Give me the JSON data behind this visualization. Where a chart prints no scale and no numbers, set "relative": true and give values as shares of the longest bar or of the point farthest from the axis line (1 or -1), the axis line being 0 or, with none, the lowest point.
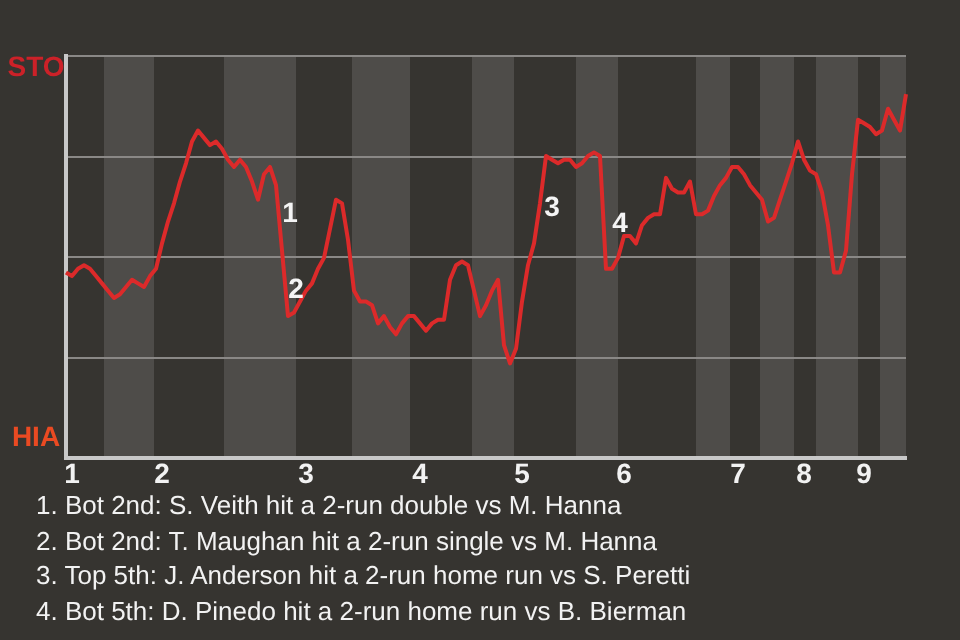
{
  "chart_data": {
    "type": "line",
    "relative": true,
    "categories": [
      null,
      "1",
      null,
      null,
      null,
      null,
      null,
      null,
      null,
      null,
      null,
      null,
      null,
      null,
      null,
      null,
      "2",
      null,
      null,
      null,
      null,
      null,
      null,
      null,
      null,
      null,
      null,
      null,
      null,
      null,
      null,
      null,
      null,
      null,
      null,
      null,
      null,
      null,
      null,
      null,
      "3",
      null,
      null,
      null,
      null,
      null,
      null,
      null,
      null,
      null,
      null,
      null,
      null,
      null,
      null,
      null,
      null,
      null,
      null,
      "4",
      null,
      null,
      null,
      null,
      null,
      null,
      null,
      null,
      null,
      null,
      null,
      null,
      null,
      null,
      null,
      null,
      "5",
      null,
      null,
      null,
      null,
      null,
      null,
      null,
      null,
      null,
      null,
      null,
      null,
      null,
      null,
      null,
      null,
      "6",
      null,
      null,
      null,
      null,
      null,
      null,
      null,
      null,
      null,
      null,
      null,
      null,
      null,
      null,
      null,
      null,
      null,
      null,
      "7",
      null,
      null,
      null,
      null,
      null,
      null,
      null,
      null,
      null,
      null,
      "8",
      null,
      null,
      null,
      null,
      null,
      null,
      null,
      null,
      null,
      "9",
      null,
      null,
      null,
      null,
      null,
      null,
      null
    ],
    "series": [
      {
        "color": "#dc2a2a",
        "values": [
          0.51,
          0.5,
          0.52,
          0.53,
          0.52,
          0.5,
          0.48,
          0.46,
          0.44,
          0.45,
          0.47,
          0.49,
          0.48,
          0.47,
          0.5,
          0.52,
          0.59,
          0.65,
          0.7,
          0.76,
          0.81,
          0.87,
          0.9,
          0.88,
          0.86,
          0.87,
          0.85,
          0.82,
          0.8,
          0.82,
          0.8,
          0.76,
          0.71,
          0.78,
          0.8,
          0.75,
          0.57,
          0.39,
          0.4,
          0.43,
          0.46,
          0.48,
          0.52,
          0.55,
          0.63,
          0.71,
          0.7,
          0.6,
          0.46,
          0.43,
          0.43,
          0.42,
          0.37,
          0.39,
          0.36,
          0.34,
          0.37,
          0.39,
          0.39,
          0.37,
          0.35,
          0.37,
          0.38,
          0.38,
          0.49,
          0.53,
          0.54,
          0.53,
          0.46,
          0.39,
          0.42,
          0.46,
          0.49,
          0.31,
          0.26,
          0.3,
          0.43,
          0.53,
          0.59,
          0.7,
          0.83,
          0.82,
          0.81,
          0.82,
          0.82,
          0.8,
          0.81,
          0.83,
          0.84,
          0.83,
          0.52,
          0.52,
          0.55,
          0.61,
          0.61,
          0.59,
          0.64,
          0.66,
          0.67,
          0.67,
          0.77,
          0.74,
          0.73,
          0.73,
          0.76,
          0.67,
          0.67,
          0.68,
          0.72,
          0.75,
          0.77,
          0.8,
          0.8,
          0.78,
          0.75,
          0.73,
          0.71,
          0.65,
          0.66,
          0.71,
          0.76,
          0.81,
          0.87,
          0.82,
          0.79,
          0.78,
          0.73,
          0.64,
          0.51,
          0.51,
          0.57,
          0.78,
          0.93,
          0.92,
          0.91,
          0.89,
          0.9,
          0.96,
          0.93,
          0.9,
          1
        ]
      }
    ],
    "grid": "y",
    "marker": "none",
    "annotations": [
      "STO",
      "HIA",
      "1",
      "2",
      "3",
      "4",
      "1. Bot 2nd: S. Veith hit a 2-run double vs M. Hanna",
      "2. Bot 2nd: T. Maughan hit a 2-run single vs M. Hanna",
      "3. Top 5th: J. Anderson hit a 2-run home run vs S. Peretti",
      "4. Bot 5th: D. Pinedo hit a 2-run home run vs B. Bierman"
    ]
  }
}
